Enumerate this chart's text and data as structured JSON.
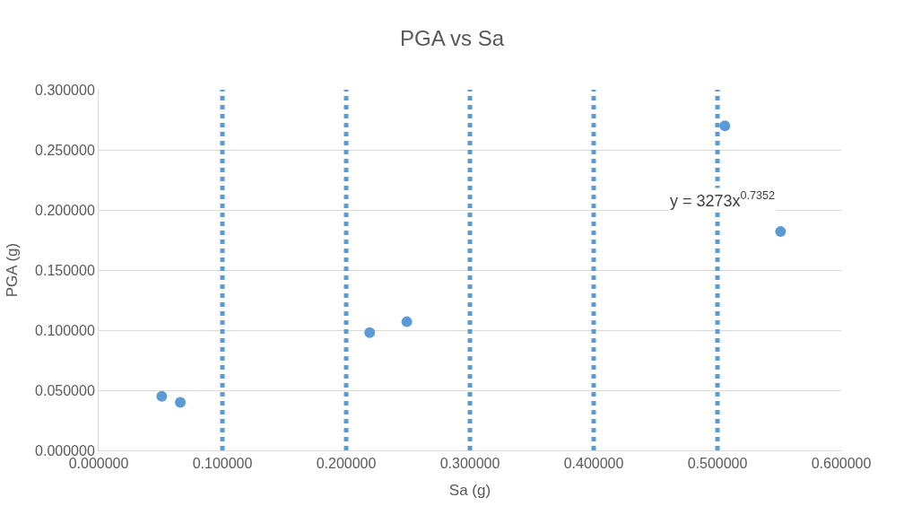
{
  "chart_data": {
    "type": "scatter",
    "title": "PGA vs Sa",
    "xlabel": "Sa (g)",
    "ylabel": "PGA (g)",
    "xlim": [
      0,
      0.6
    ],
    "xticks": [
      {
        "value": 0,
        "label": "0.000000"
      },
      {
        "value": 0.1,
        "label": "0.100000"
      },
      {
        "value": 0.2,
        "label": "0.200000"
      },
      {
        "value": 0.3,
        "label": "0.300000"
      },
      {
        "value": 0.4,
        "label": "0.400000"
      },
      {
        "value": 0.5,
        "label": "0.500000"
      },
      {
        "value": 0.6,
        "label": "0.600000"
      }
    ],
    "ylim": [
      0,
      0.3
    ],
    "yticks": [
      {
        "value": 0,
        "label": "0.000000"
      },
      {
        "value": 0.05,
        "label": "0.050000"
      },
      {
        "value": 0.1,
        "label": "0.100000"
      },
      {
        "value": 0.15,
        "label": "0.150000"
      },
      {
        "value": 0.2,
        "label": "0.200000"
      },
      {
        "value": 0.25,
        "label": "0.250000"
      },
      {
        "value": 0.3,
        "label": "0.300000"
      }
    ],
    "grid": "y",
    "marker": "circle",
    "series": [
      {
        "color": "#5b9bd5",
        "x": [
          0.051,
          0.066,
          0.219,
          0.249,
          0.506,
          0.551
        ],
        "values": [
          0.045,
          0.04,
          0.098,
          0.107,
          0.27,
          0.182
        ]
      }
    ],
    "ref_lines": [
      {
        "axis": "x",
        "value": 0.1,
        "color": "#5b9bd5",
        "line_style": "dotted"
      },
      {
        "axis": "x",
        "value": 0.2,
        "color": "#5b9bd5",
        "line_style": "dotted"
      },
      {
        "axis": "x",
        "value": 0.3,
        "color": "#5b9bd5",
        "line_style": "dotted"
      },
      {
        "axis": "x",
        "value": 0.4,
        "color": "#5b9bd5",
        "line_style": "dotted"
      },
      {
        "axis": "x",
        "value": 0.5,
        "color": "#5b9bd5",
        "line_style": "dotted"
      }
    ],
    "annotations": [
      "y = 3273x$^{0.7352}$"
    ]
  }
}
